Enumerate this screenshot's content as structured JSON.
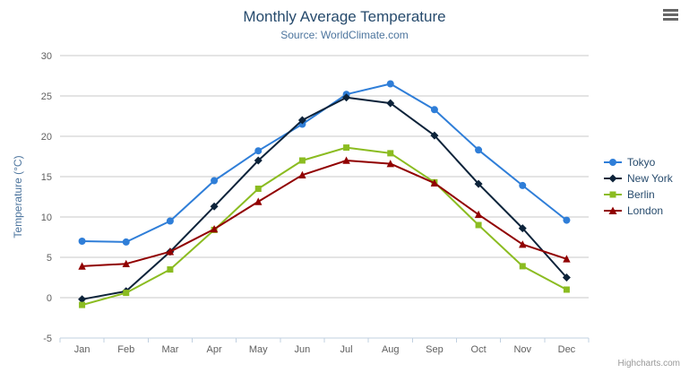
{
  "chart": {
    "title": "Monthly Average Temperature",
    "subtitle": "Source: WorldClimate.com",
    "credit": "Highcharts.com",
    "menu_icon": "hamburger-menu-icon"
  },
  "chart_data": {
    "type": "line",
    "title": "Monthly Average Temperature",
    "subtitle": "Source: WorldClimate.com",
    "categories": [
      "Jan",
      "Feb",
      "Mar",
      "Apr",
      "May",
      "Jun",
      "Jul",
      "Aug",
      "Sep",
      "Oct",
      "Nov",
      "Dec"
    ],
    "series": [
      {
        "name": "Tokyo",
        "color": "#2f7ed8",
        "marker": "circle",
        "values": [
          7.0,
          6.9,
          9.5,
          14.5,
          18.2,
          21.5,
          25.2,
          26.5,
          23.3,
          18.3,
          13.9,
          9.6
        ]
      },
      {
        "name": "New York",
        "color": "#0d233a",
        "marker": "diamond",
        "values": [
          -0.2,
          0.8,
          5.7,
          11.3,
          17.0,
          22.0,
          24.8,
          24.1,
          20.1,
          14.1,
          8.6,
          2.5
        ]
      },
      {
        "name": "Berlin",
        "color": "#8bbc21",
        "marker": "square",
        "values": [
          -0.9,
          0.6,
          3.5,
          8.4,
          13.5,
          17.0,
          18.6,
          17.9,
          14.3,
          9.0,
          3.9,
          1.0
        ]
      },
      {
        "name": "London",
        "color": "#910000",
        "marker": "triangle",
        "values": [
          3.9,
          4.2,
          5.7,
          8.5,
          11.9,
          15.2,
          17.0,
          16.6,
          14.2,
          10.3,
          6.6,
          4.8
        ]
      }
    ],
    "xlabel": "",
    "ylabel": "Temperature (°C)",
    "ylim": [
      -5,
      30
    ],
    "yticks": [
      -5,
      0,
      5,
      10,
      15,
      20,
      25,
      30
    ],
    "grid": true,
    "legend_position": "right"
  }
}
